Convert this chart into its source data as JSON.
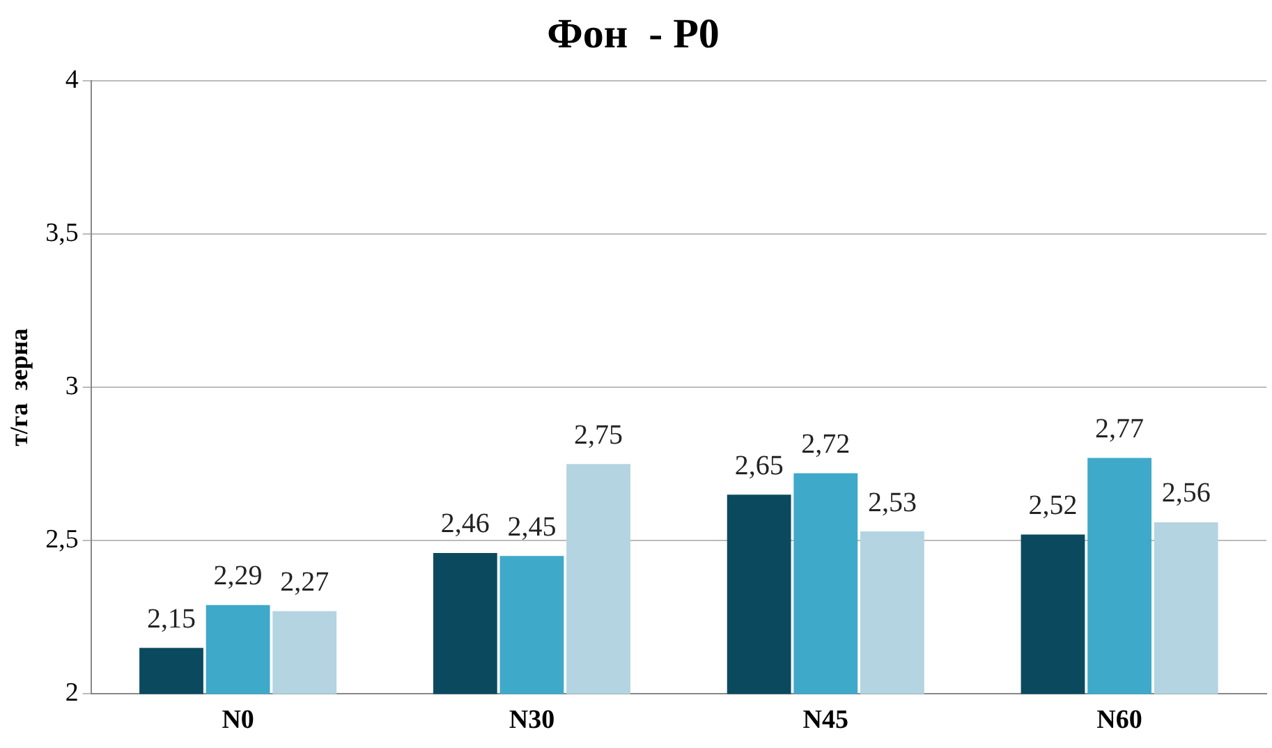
{
  "chart_data": {
    "type": "bar",
    "title": "Фон  - Р0",
    "ylabel": "т/га  зерна",
    "categories": [
      "N0",
      "N30",
      "N45",
      "N60"
    ],
    "series": [
      {
        "color": "#0b4a5e",
        "values": [
          2.15,
          2.46,
          2.65,
          2.52
        ],
        "value_labels": [
          "2,15",
          "2,46",
          "2,65",
          "2,52"
        ]
      },
      {
        "color": "#3fa9c9",
        "values": [
          2.29,
          2.45,
          2.72,
          2.77
        ],
        "value_labels": [
          "2,29",
          "2,45",
          "2,72",
          "2,77"
        ]
      },
      {
        "color": "#b3d4e0",
        "values": [
          2.27,
          2.75,
          2.53,
          2.56
        ],
        "value_labels": [
          "2,27",
          "2,75",
          "2,53",
          "2,56"
        ]
      }
    ],
    "ylim": [
      2,
      4
    ],
    "yticks": [
      2,
      {
        "value": 2.5,
        "label": "2,5"
      },
      3,
      {
        "value": 3.5,
        "label": "3,5"
      },
      4
    ],
    "grid": "y",
    "legend": false
  }
}
